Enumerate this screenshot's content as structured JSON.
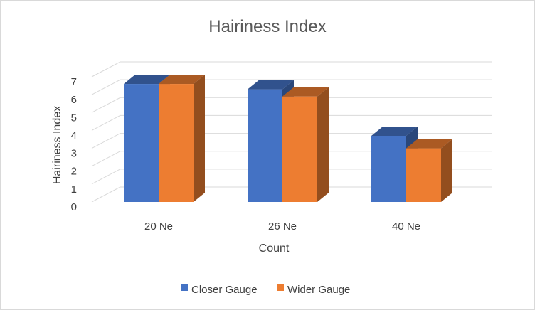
{
  "chart_data": {
    "type": "bar",
    "title": "Hairiness Index",
    "xlabel": "Count",
    "ylabel": "Hairiness Index",
    "categories": [
      "20 Ne",
      "26 Ne",
      "40 Ne"
    ],
    "series": [
      {
        "name": "Closer Gauge",
        "values": [
          6.6,
          6.3,
          3.7
        ],
        "color": "#4472C4"
      },
      {
        "name": "Wider Gauge",
        "values": [
          6.6,
          5.9,
          3.0
        ],
        "color": "#ED7D31"
      }
    ],
    "ylim": [
      0,
      7
    ],
    "yticks": [
      "0",
      "1",
      "2",
      "3",
      "4",
      "5",
      "6",
      "7"
    ],
    "grid": true,
    "legend_position": "bottom",
    "style": "3d-clustered-column"
  }
}
